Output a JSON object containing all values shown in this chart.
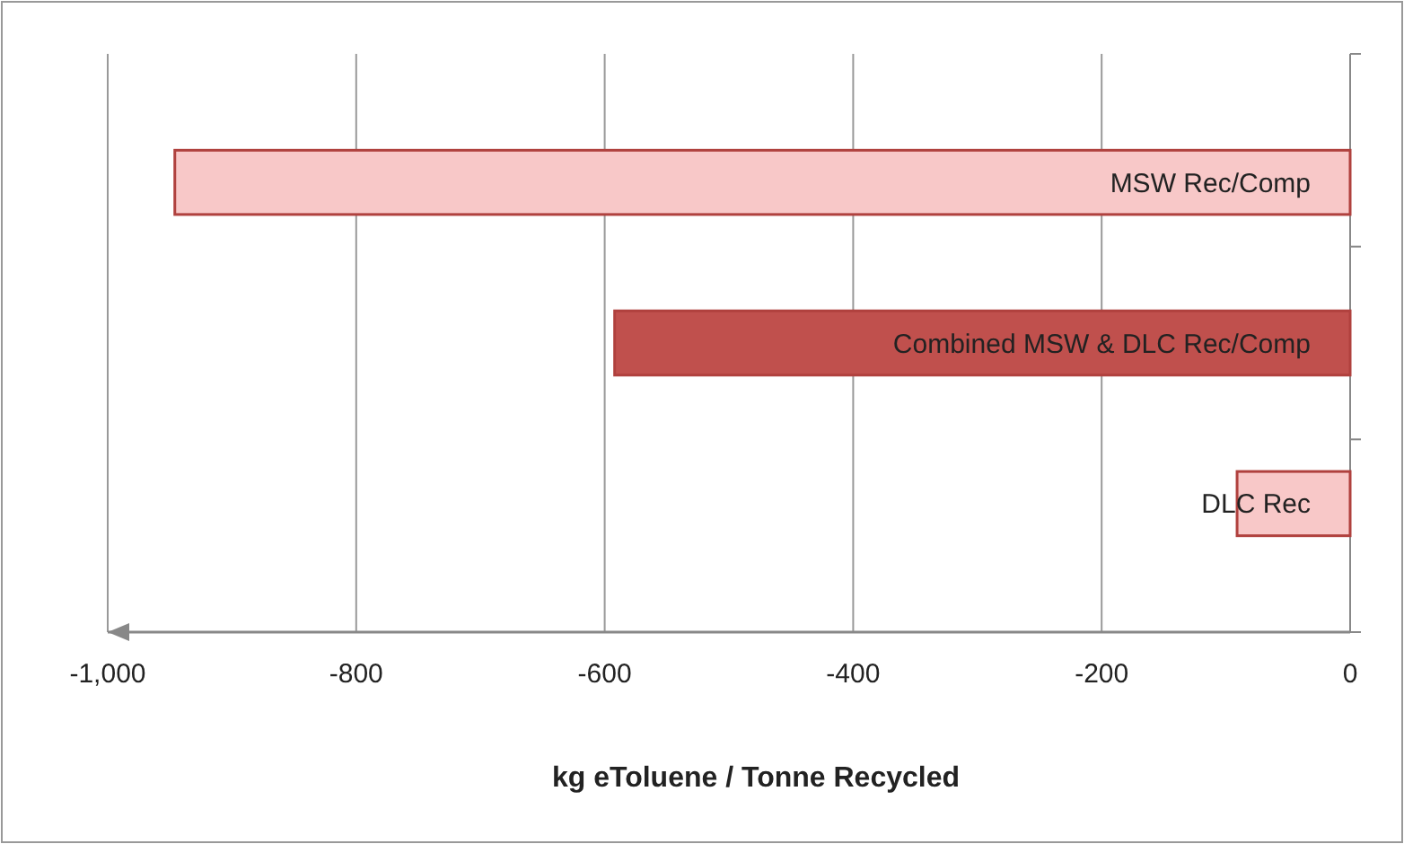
{
  "chart_data": {
    "type": "bar",
    "orientation": "horizontal",
    "xlabel": "kg eToluene / Tonne Recycled",
    "categories": [
      "MSW Rec/Comp",
      "Combined MSW & DLC Rec/Comp",
      "DLC Rec"
    ],
    "values": [
      -946,
      -592,
      -91
    ],
    "colors": [
      "#f8c8c8",
      "#c0504d",
      "#f8c8c8"
    ],
    "xlim": [
      -1000,
      0
    ],
    "xticks": [
      {
        "value": -1000,
        "label": "-1,000"
      },
      -800,
      -600,
      -400,
      -200,
      0
    ],
    "grid": "x"
  }
}
